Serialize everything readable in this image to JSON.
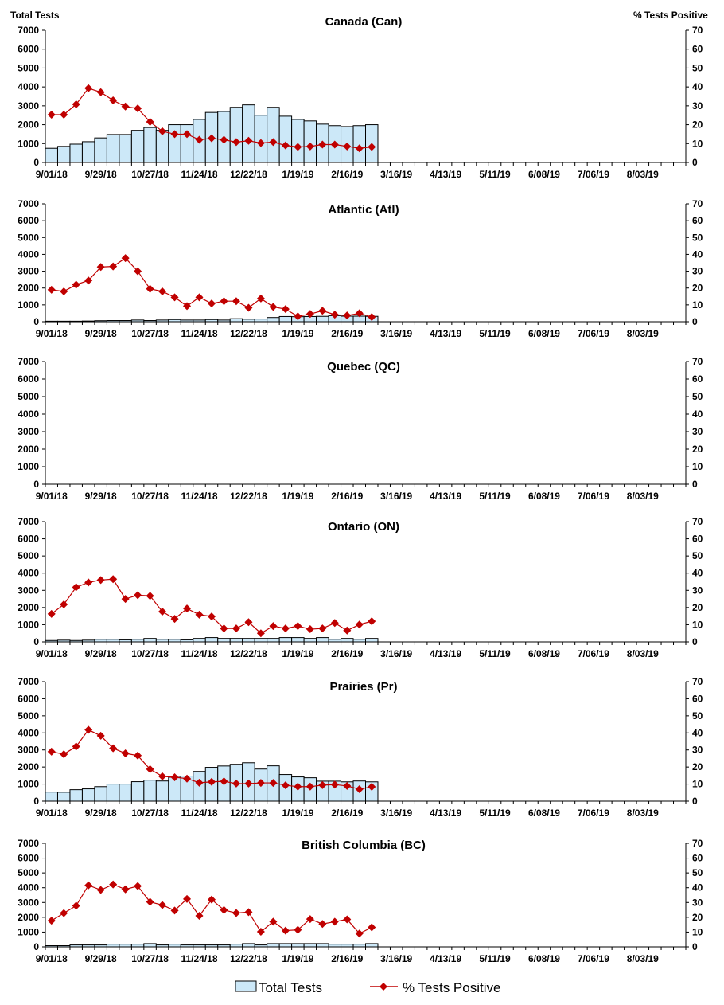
{
  "chart_data": [
    {
      "type": "bar+line",
      "title": "Canada (Can)",
      "ylabel_left": "Total Tests",
      "ylabel_right": "% Tests Positive",
      "bars": [
        750,
        850,
        970,
        1100,
        1300,
        1480,
        1480,
        1700,
        1850,
        1700,
        2000,
        2000,
        2280,
        2650,
        2700,
        2920,
        3050,
        2500,
        2920,
        2450,
        2280,
        2200,
        2030,
        1950,
        1900,
        1950,
        2000
      ],
      "line": [
        25.3,
        25.3,
        30.8,
        39.3,
        37.2,
        32.9,
        29.6,
        28.6,
        21.5,
        16.5,
        15,
        15,
        12,
        12.8,
        12,
        10.8,
        11.5,
        10.3,
        10.8,
        9,
        8.2,
        8.5,
        9.5,
        9.5,
        8.5,
        7.5,
        8.2
      ]
    },
    {
      "type": "bar+line",
      "title": "Atlantic (Atl)",
      "bars": [
        30,
        30,
        30,
        40,
        60,
        70,
        70,
        100,
        70,
        100,
        130,
        100,
        100,
        130,
        100,
        180,
        150,
        160,
        250,
        310,
        300,
        310,
        320,
        360,
        330,
        330,
        320
      ],
      "line": [
        19,
        18,
        22,
        24.5,
        32.5,
        32.8,
        37.8,
        30,
        19.5,
        18,
        14.5,
        9.3,
        14.5,
        10.8,
        12.2,
        12.2,
        8.3,
        13.8,
        8.8,
        7.5,
        3.2,
        4.6,
        6.5,
        4.2,
        3.7,
        5,
        2.8
      ]
    },
    {
      "type": "bar+line",
      "title": "Quebec (QC)",
      "bars": [],
      "line": []
    },
    {
      "type": "bar+line",
      "title": "Ontario (ON)",
      "bars": [
        80,
        100,
        80,
        100,
        150,
        150,
        120,
        150,
        200,
        150,
        150,
        120,
        200,
        250,
        200,
        200,
        200,
        200,
        200,
        250,
        250,
        200,
        250,
        150,
        200,
        150,
        200
      ],
      "line": [
        16.3,
        21.8,
        31.8,
        34.6,
        36,
        36.5,
        25,
        27.2,
        26.8,
        17.6,
        13.4,
        19.4,
        15.8,
        14.8,
        7.8,
        7.8,
        11.5,
        5,
        9.2,
        7.8,
        9.2,
        7.4,
        7.8,
        11,
        6.6,
        10.1,
        12
      ]
    },
    {
      "type": "bar+line",
      "title": "Prairies (Pr)",
      "bars": [
        530,
        520,
        670,
        720,
        850,
        1000,
        1000,
        1140,
        1230,
        1180,
        1400,
        1470,
        1740,
        1980,
        2060,
        2160,
        2250,
        1880,
        2070,
        1560,
        1420,
        1370,
        1170,
        1170,
        1130,
        1180,
        1130
      ],
      "line": [
        29,
        27.5,
        32,
        41.8,
        38.3,
        31,
        28,
        26.7,
        18.7,
        14.5,
        14,
        13.2,
        10.8,
        11.3,
        11.6,
        10.3,
        10.3,
        10.7,
        10.7,
        9.3,
        8.5,
        8.5,
        9.4,
        9.7,
        8.9,
        7,
        8.4
      ]
    },
    {
      "type": "bar+line",
      "title": "British Columbia (BC)",
      "bars": [
        80,
        80,
        130,
        130,
        130,
        180,
        180,
        180,
        220,
        130,
        180,
        130,
        130,
        130,
        130,
        180,
        220,
        130,
        220,
        220,
        220,
        220,
        220,
        180,
        180,
        180,
        220
      ],
      "line": [
        17.7,
        22.8,
        27.8,
        41.6,
        38.5,
        42.2,
        38.9,
        41.1,
        30.4,
        28.3,
        24.6,
        32.4,
        21,
        32,
        24.9,
        22.9,
        23.5,
        10.2,
        17,
        11,
        11.5,
        18.8,
        15.5,
        17,
        18.6,
        9,
        13.2
      ]
    }
  ],
  "axes": {
    "left_ticks": [
      "0",
      "1000",
      "2000",
      "3000",
      "4000",
      "5000",
      "6000",
      "7000"
    ],
    "right_ticks": [
      "0",
      "10",
      "20",
      "30",
      "40",
      "50",
      "60",
      "70"
    ],
    "ylim_left": [
      0,
      7000
    ],
    "ylim_right": [
      0,
      70
    ],
    "x_ticks": [
      "9/01/18",
      "9/29/18",
      "10/27/18",
      "11/24/18",
      "12/22/18",
      "1/19/19",
      "2/16/19",
      "3/16/19",
      "4/13/19",
      "5/11/19",
      "6/08/19",
      "7/06/19",
      "8/03/19"
    ],
    "weeks": 52
  },
  "labels": {
    "left": "Total Tests",
    "right": "% Tests Positive"
  },
  "legend": {
    "bars": "Total Tests",
    "line": "% Tests Positive",
    "position": "bottom"
  },
  "colors": {
    "bar_fill": "#cce8f8",
    "bar_stroke": "#000000",
    "line": "#c00000"
  }
}
